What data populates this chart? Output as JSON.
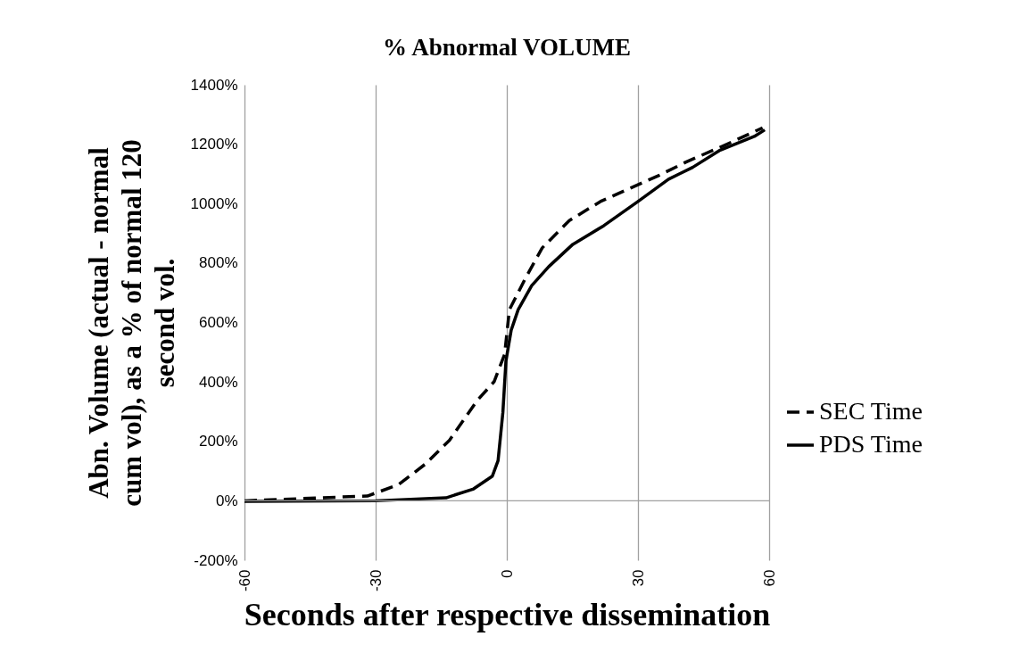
{
  "chart_data": {
    "type": "line",
    "title": "% Abnormal VOLUME",
    "xlabel": "Seconds after respective dissemination",
    "ylabel": "Abn. Volume (actual - normal cum vol), as a % of normal 120 second vol.",
    "xlim": [
      -60,
      60
    ],
    "xticks": [
      -60,
      -30,
      0,
      30,
      60
    ],
    "ylim": [
      -200,
      1400
    ],
    "yticks": [
      {
        "value": -200,
        "label": "-200%"
      },
      {
        "value": 0,
        "label": "0%"
      },
      {
        "value": 200,
        "label": "200%"
      },
      {
        "value": 400,
        "label": "400%"
      },
      {
        "value": 600,
        "label": "600%"
      },
      {
        "value": 800,
        "label": "800%"
      },
      {
        "value": 1000,
        "label": "1000%"
      },
      {
        "value": 1200,
        "label": "1200%"
      },
      {
        "value": 1400,
        "label": "1400%"
      }
    ],
    "grid": "x",
    "legend": "right",
    "ref_lines": [
      {
        "axis": "y",
        "value": 0,
        "color": "#a0a0a0"
      }
    ],
    "series": [
      {
        "name": "SEC Time",
        "color": "#000000",
        "line_style": "dashed",
        "x": [
          -60,
          -31.9,
          -24.8,
          -18.6,
          -13.1,
          -6.8,
          -2.9,
          -0.5,
          0.6,
          4.2,
          8.1,
          14.3,
          21.4,
          28.4,
          34.7,
          41,
          49.6,
          58.5
        ],
        "values": [
          0,
          16,
          54,
          124,
          204,
          337,
          401,
          493,
          643,
          747,
          851,
          943,
          1007,
          1053,
          1094,
          1140,
          1195,
          1255
        ]
      },
      {
        "name": "PDS Time",
        "color": "#000000",
        "line_style": "solid",
        "x": [
          -60,
          -30,
          -13.9,
          -7.6,
          -3.3,
          -2,
          -0.9,
          -0.2,
          1,
          2.6,
          5.7,
          9.6,
          15.1,
          22.2,
          30,
          37,
          42.5,
          48.8,
          56.6,
          59
        ],
        "values": [
          -2,
          0,
          10,
          40,
          83,
          135,
          297,
          470,
          574,
          643,
          724,
          788,
          863,
          926,
          1007,
          1082,
          1122,
          1180,
          1226,
          1248
        ]
      }
    ]
  }
}
